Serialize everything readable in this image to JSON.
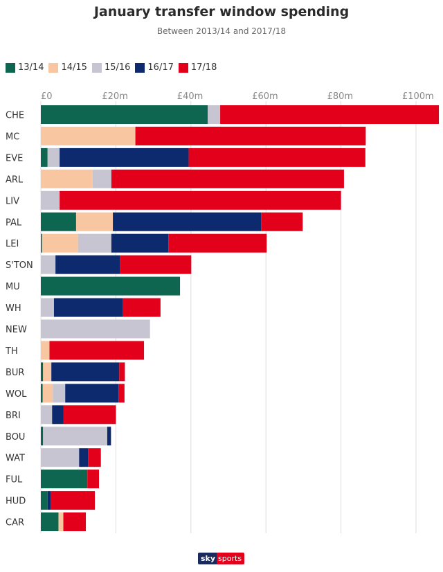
{
  "chart_data": {
    "type": "bar",
    "orientation": "horizontal",
    "stacked": true,
    "title": "January transfer window spending",
    "subtitle": "Between 2013/14 and 2017/18",
    "x_ticks": [
      "£0",
      "£20m",
      "£40m",
      "£60m",
      "£80m",
      "£100m"
    ],
    "x_tick_values": [
      0,
      20,
      40,
      60,
      80,
      100
    ],
    "xlim": [
      0,
      106
    ],
    "grid": true,
    "legend_position": "top-left",
    "categories": [
      "CHE",
      "MC",
      "EVE",
      "ARL",
      "LIV",
      "PAL",
      "LEI",
      "S'TON",
      "MU",
      "WH",
      "NEW",
      "TH",
      "BUR",
      "WOL",
      "BRI",
      "BOU",
      "WAT",
      "FUL",
      "HUD",
      "CAR"
    ],
    "series": [
      {
        "name": "13/14",
        "color": "#0e6651",
        "values": [
          44.5,
          0,
          1.8,
          0,
          0,
          9.4,
          0.3,
          0,
          37.1,
          0,
          0,
          0,
          0.6,
          0.5,
          0,
          0.6,
          0,
          12.4,
          1.8,
          4.7
        ]
      },
      {
        "name": "14/15",
        "color": "#f9c6a2",
        "values": [
          0,
          25.2,
          0,
          13.8,
          0,
          9.8,
          9.6,
          0,
          0,
          0,
          0,
          2.3,
          2.2,
          2.7,
          0,
          0,
          0,
          0,
          0,
          1.3
        ]
      },
      {
        "name": "15/16",
        "color": "#c6c5d1",
        "values": [
          3.3,
          0,
          3.2,
          5.0,
          5.0,
          0,
          8.9,
          3.9,
          0,
          3.5,
          29.1,
          0,
          0,
          3.3,
          3.0,
          17.1,
          10.2,
          0,
          0,
          0
        ]
      },
      {
        "name": "16/17",
        "color": "#0d2a6e",
        "values": [
          0,
          0,
          34.4,
          0,
          0,
          39.5,
          15.2,
          17.2,
          0,
          18.4,
          0,
          0,
          18.1,
          14.2,
          3.0,
          1.0,
          2.4,
          0,
          0.8,
          0
        ]
      },
      {
        "name": "17/18",
        "color": "#e3001b",
        "values": [
          58.3,
          61.4,
          47.1,
          62.0,
          75.0,
          11.1,
          26.2,
          19.0,
          0,
          10.0,
          0,
          25.2,
          1.5,
          1.6,
          14.0,
          0,
          3.4,
          3.1,
          11.8,
          6.0
        ]
      }
    ]
  },
  "branding": {
    "part1": "sky",
    "part2": "sports"
  }
}
